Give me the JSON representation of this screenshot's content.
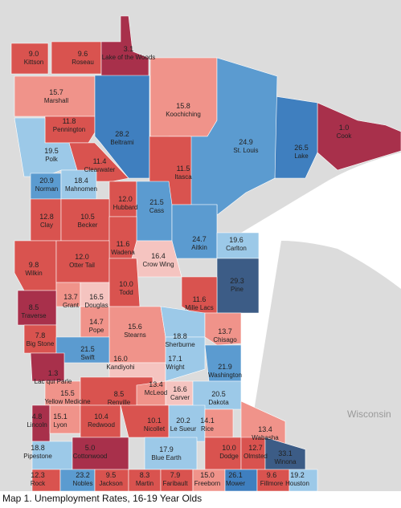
{
  "caption": "Map 1. Unemployment Rates, 16-19 Year Olds",
  "basemap_label": "Wisconsin",
  "colors": {
    "very_high": "#a8304b",
    "high": "#d9534f",
    "mid_high": "#f0938a",
    "mid": "#f5c4c0",
    "mid_low": "#9cc9e8",
    "low": "#5b9bd0",
    "lower": "#3f7fbf",
    "lowest": "#3c5c86",
    "land": "#e0e0e0",
    "water": "#ffffff"
  },
  "counties": [
    {
      "name": "Kittson",
      "value": "9.0",
      "cls": "high"
    },
    {
      "name": "Roseau",
      "value": "9.6",
      "cls": "high"
    },
    {
      "name": "Lake of the Woods",
      "value": "3.1",
      "cls": "very_high"
    },
    {
      "name": "Marshall",
      "value": "15.7",
      "cls": "mid_high"
    },
    {
      "name": "Koochiching",
      "value": "15.8",
      "cls": "mid_high"
    },
    {
      "name": "Pennington",
      "value": "11.8",
      "cls": "high"
    },
    {
      "name": "Beltrami",
      "value": "28.2",
      "cls": "lower"
    },
    {
      "name": "Cook",
      "value": "1.0",
      "cls": "very_high"
    },
    {
      "name": "Lake",
      "value": "26.5",
      "cls": "lower"
    },
    {
      "name": "St. Louis",
      "value": "24.9",
      "cls": "low"
    },
    {
      "name": "Polk",
      "value": "19.5",
      "cls": "mid_low"
    },
    {
      "name": "Clearwater",
      "value": "11.4",
      "cls": "high"
    },
    {
      "name": "Itasca",
      "value": "11.5",
      "cls": "high"
    },
    {
      "name": "Norman",
      "value": "20.9",
      "cls": "low"
    },
    {
      "name": "Mahnomen",
      "value": "18.4",
      "cls": "mid_low"
    },
    {
      "name": "Hubbard",
      "value": "12.0",
      "cls": "high"
    },
    {
      "name": "Cass",
      "value": "21.5",
      "cls": "low"
    },
    {
      "name": "Clay",
      "value": "12.8",
      "cls": "high"
    },
    {
      "name": "Becker",
      "value": "10.5",
      "cls": "high"
    },
    {
      "name": "Aitkin",
      "value": "24.7",
      "cls": "low"
    },
    {
      "name": "Carlton",
      "value": "19.6",
      "cls": "mid_low"
    },
    {
      "name": "Wadena",
      "value": "11.6",
      "cls": "high"
    },
    {
      "name": "Crow Wing",
      "value": "16.4",
      "cls": "mid"
    },
    {
      "name": "Wilkin",
      "value": "9.8",
      "cls": "high"
    },
    {
      "name": "Otter Tail",
      "value": "12.0",
      "cls": "high"
    },
    {
      "name": "Todd",
      "value": "10.0",
      "cls": "high"
    },
    {
      "name": "Pine",
      "value": "29.3",
      "cls": "lowest"
    },
    {
      "name": "Grant",
      "value": "13.7",
      "cls": "mid_high"
    },
    {
      "name": "Douglas",
      "value": "16.5",
      "cls": "mid"
    },
    {
      "name": "Traverse",
      "value": "8.5",
      "cls": "very_high"
    },
    {
      "name": "Mille Lacs",
      "value": "11.6",
      "cls": "high"
    },
    {
      "name": "Pope",
      "value": "14.7",
      "cls": "mid_high"
    },
    {
      "name": "Stearns",
      "value": "15.6",
      "cls": "mid_high"
    },
    {
      "name": "Big Stone",
      "value": "7.8",
      "cls": "high"
    },
    {
      "name": "Sherburne",
      "value": "18.8",
      "cls": "mid_low"
    },
    {
      "name": "Chisago",
      "value": "13.7",
      "cls": "mid_high"
    },
    {
      "name": "Swift",
      "value": "21.5",
      "cls": "low"
    },
    {
      "name": "Kandiyohi",
      "value": "16.0",
      "cls": "mid"
    },
    {
      "name": "Wright",
      "value": "17.1",
      "cls": "mid_low"
    },
    {
      "name": "Lac qui Parle",
      "value": "1.3",
      "cls": "very_high"
    },
    {
      "name": "Washington",
      "value": "21.9",
      "cls": "low"
    },
    {
      "name": "Yellow Medicine",
      "value": "15.5",
      "cls": "mid_high"
    },
    {
      "name": "Renville",
      "value": "8.5",
      "cls": "high"
    },
    {
      "name": "McLeod",
      "value": "13.4",
      "cls": "mid_high"
    },
    {
      "name": "Carver",
      "value": "16.6",
      "cls": "mid"
    },
    {
      "name": "Dakota",
      "value": "20.5",
      "cls": "mid_low"
    },
    {
      "name": "Lincoln",
      "value": "4.8",
      "cls": "very_high"
    },
    {
      "name": "Lyon",
      "value": "15.1",
      "cls": "mid_high"
    },
    {
      "name": "Redwood",
      "value": "10.4",
      "cls": "high"
    },
    {
      "name": "Nicollet",
      "value": "10.1",
      "cls": "high"
    },
    {
      "name": "Le Sueur",
      "value": "20.2",
      "cls": "mid_low"
    },
    {
      "name": "Rice",
      "value": "14.1",
      "cls": "mid_high"
    },
    {
      "name": "Wabasha",
      "value": "13.4",
      "cls": "mid_high"
    },
    {
      "name": "Pipestone",
      "value": "18.8",
      "cls": "mid_low"
    },
    {
      "name": "Cottonwood",
      "value": "5.0",
      "cls": "very_high"
    },
    {
      "name": "Blue Earth",
      "value": "17.9",
      "cls": "mid_low"
    },
    {
      "name": "Dodge",
      "value": "10.0",
      "cls": "high"
    },
    {
      "name": "Olmsted",
      "value": "12.7",
      "cls": "high"
    },
    {
      "name": "Winona",
      "value": "33.1",
      "cls": "lowest"
    },
    {
      "name": "Rock",
      "value": "12.3",
      "cls": "high"
    },
    {
      "name": "Nobles",
      "value": "23.2",
      "cls": "low"
    },
    {
      "name": "Jackson",
      "value": "9.5",
      "cls": "high"
    },
    {
      "name": "Martin",
      "value": "8.3",
      "cls": "high"
    },
    {
      "name": "Faribault",
      "value": "7.9",
      "cls": "high"
    },
    {
      "name": "Freeborn",
      "value": "15.0",
      "cls": "mid_high"
    },
    {
      "name": "Mower",
      "value": "26.1",
      "cls": "lower"
    },
    {
      "name": "Fillmore",
      "value": "9.6",
      "cls": "high"
    },
    {
      "name": "Houston",
      "value": "19.2",
      "cls": "mid_low"
    }
  ]
}
